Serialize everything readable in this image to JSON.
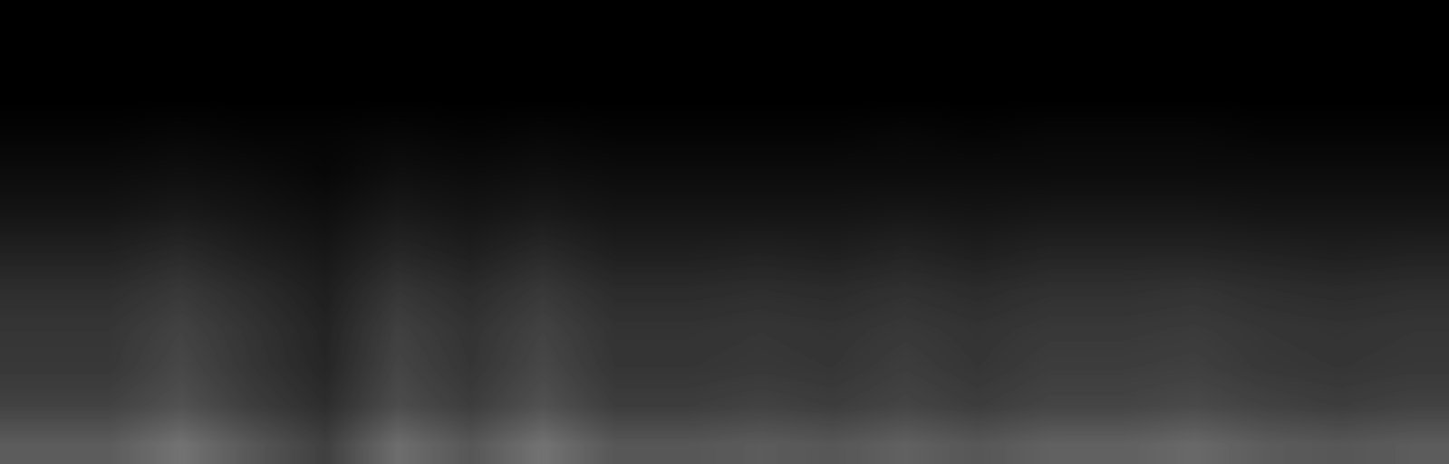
{
  "chart_data": {
    "type": "heatmap",
    "color": "gray",
    "tick_labels": false,
    "zlim": [
      0,
      1
    ],
    "cells": [
      [
        0,
        0,
        0,
        0,
        0,
        0,
        0,
        0,
        0,
        0,
        0,
        0,
        0,
        0,
        0,
        0,
        0,
        0,
        0,
        0
      ],
      [
        0,
        0,
        0,
        0,
        0,
        0,
        0,
        0,
        0,
        0,
        0,
        0,
        0,
        0,
        0,
        0,
        0,
        0,
        0,
        0
      ],
      [
        0,
        0,
        0,
        0,
        0,
        0,
        0,
        0,
        0,
        0,
        0,
        0,
        0,
        0,
        0,
        0,
        0,
        0,
        0,
        0
      ],
      [
        0.02,
        0.02,
        0.03,
        0.02,
        0.02,
        0.03,
        0.02,
        0.03,
        0.02,
        0.02,
        0.02,
        0.02,
        0.03,
        0.02,
        0.03,
        0.03,
        0.03,
        0.02,
        0.02,
        0.02
      ],
      [
        0.05,
        0.05,
        0.06,
        0.05,
        0.03,
        0.06,
        0.05,
        0.06,
        0.05,
        0.05,
        0.05,
        0.05,
        0.05,
        0.05,
        0.05,
        0.05,
        0.05,
        0.05,
        0.05,
        0.05
      ],
      [
        0.08,
        0.08,
        0.1,
        0.08,
        0.06,
        0.1,
        0.08,
        0.1,
        0.08,
        0.08,
        0.08,
        0.08,
        0.09,
        0.08,
        0.09,
        0.09,
        0.09,
        0.08,
        0.08,
        0.08
      ],
      [
        0.13,
        0.13,
        0.16,
        0.12,
        0.09,
        0.15,
        0.12,
        0.16,
        0.12,
        0.12,
        0.13,
        0.12,
        0.14,
        0.12,
        0.14,
        0.14,
        0.14,
        0.13,
        0.12,
        0.13
      ],
      [
        0.18,
        0.18,
        0.22,
        0.17,
        0.12,
        0.21,
        0.17,
        0.22,
        0.17,
        0.17,
        0.18,
        0.17,
        0.19,
        0.17,
        0.19,
        0.19,
        0.2,
        0.18,
        0.17,
        0.18
      ],
      [
        0.21,
        0.21,
        0.26,
        0.2,
        0.14,
        0.25,
        0.2,
        0.26,
        0.2,
        0.2,
        0.21,
        0.2,
        0.22,
        0.2,
        0.22,
        0.22,
        0.23,
        0.21,
        0.2,
        0.21
      ],
      [
        0.22,
        0.22,
        0.28,
        0.21,
        0.15,
        0.27,
        0.21,
        0.28,
        0.21,
        0.21,
        0.22,
        0.21,
        0.24,
        0.21,
        0.24,
        0.24,
        0.25,
        0.22,
        0.21,
        0.22
      ],
      [
        0.26,
        0.26,
        0.32,
        0.24,
        0.18,
        0.3,
        0.24,
        0.32,
        0.24,
        0.24,
        0.26,
        0.24,
        0.27,
        0.24,
        0.27,
        0.27,
        0.29,
        0.26,
        0.24,
        0.26
      ],
      [
        0.36,
        0.36,
        0.45,
        0.34,
        0.25,
        0.43,
        0.34,
        0.45,
        0.34,
        0.34,
        0.36,
        0.34,
        0.38,
        0.34,
        0.38,
        0.38,
        0.41,
        0.36,
        0.34,
        0.36
      ]
    ]
  }
}
